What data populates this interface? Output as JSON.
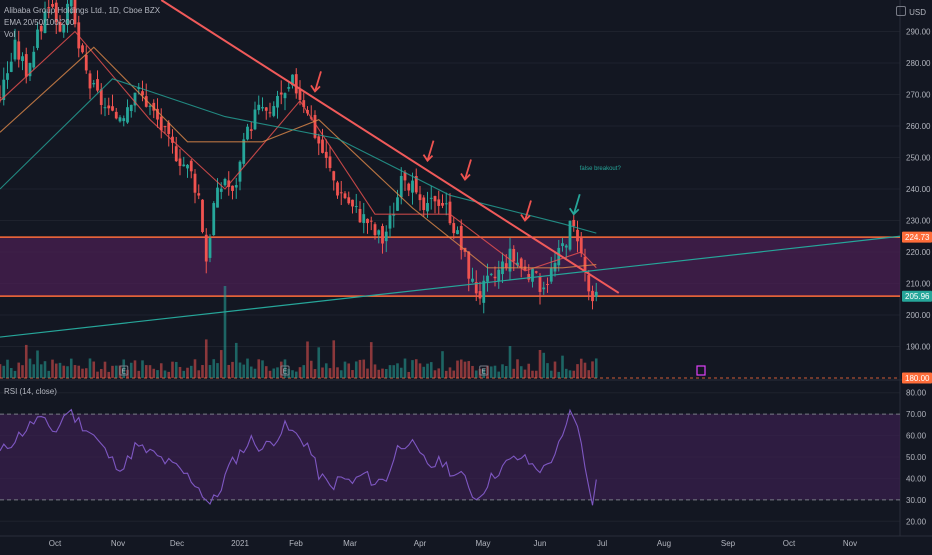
{
  "legend": {
    "title": "Alibaba Group Holdings Ltd., 1D, Cboe BZX",
    "ema": "EMA 20/50/100/200",
    "vol": "Vol"
  },
  "currency": "USD",
  "rsi_title": "RSI (14, close)",
  "annotation": "false breakout?",
  "colors": {
    "background": "#131722",
    "up": "#26a69a",
    "down": "#ef5350",
    "zone": "#4a1f52",
    "zone_line": "#ff6d3a",
    "trend_up": "#26a69a",
    "trend_down": "#f05a5a",
    "rsi": "#7e57c2",
    "rsi_band": "#3a1f4f",
    "ema20": "#ef5350",
    "ema50": "#e0894a",
    "ema100": "#26a69a",
    "label_orange": "#ff6d3a",
    "label_green": "#26a69a"
  },
  "chart_data": [
    {
      "type": "candlestick",
      "title": "Alibaba Group Holdings Ltd., 1D, Cboe BZX",
      "x_ticks": [
        "Oct",
        "Nov",
        "Dec",
        "2021",
        "Feb",
        "Mar",
        "Apr",
        "May",
        "Jun",
        "Jul",
        "Aug",
        "Sep",
        "Oct",
        "Nov"
      ],
      "y_ticks": [
        190,
        200,
        210,
        220,
        230,
        240,
        250,
        260,
        270,
        280,
        290
      ],
      "ylim": [
        180,
        300
      ],
      "price_labels": [
        {
          "value": "224.73",
          "price": 224.73,
          "color": "orange"
        },
        {
          "value": "205.96",
          "price": 205.96,
          "color": "green"
        },
        {
          "value": "180.00",
          "price": 180.0,
          "color": "orange"
        }
      ],
      "support_zone": [
        206,
        224.73
      ],
      "close_series": [
        [
          0,
          270
        ],
        [
          4,
          285
        ],
        [
          7,
          278
        ],
        [
          10,
          288
        ],
        [
          13,
          300
        ],
        [
          16,
          292
        ],
        [
          19,
          298
        ],
        [
          21,
          285
        ],
        [
          24,
          273
        ],
        [
          27,
          268
        ],
        [
          30,
          262
        ],
        [
          33,
          265
        ],
        [
          36,
          272
        ],
        [
          39,
          268
        ],
        [
          42,
          262
        ],
        [
          45,
          255
        ],
        [
          48,
          250
        ],
        [
          51,
          245
        ],
        [
          53,
          238
        ],
        [
          55,
          218
        ],
        [
          57,
          235
        ],
        [
          60,
          244
        ],
        [
          62,
          238
        ],
        [
          64,
          248
        ],
        [
          66,
          258
        ],
        [
          68,
          264
        ],
        [
          70,
          266
        ],
        [
          72,
          262
        ],
        [
          74,
          270
        ],
        [
          76,
          268
        ],
        [
          78,
          274
        ],
        [
          80,
          270
        ],
        [
          82,
          266
        ],
        [
          84,
          258
        ],
        [
          86,
          252
        ],
        [
          88,
          246
        ],
        [
          90,
          240
        ],
        [
          92,
          238
        ],
        [
          94,
          234
        ],
        [
          96,
          232
        ],
        [
          98,
          230
        ],
        [
          100,
          226
        ],
        [
          102,
          224
        ],
        [
          104,
          230
        ],
        [
          106,
          238
        ],
        [
          108,
          245
        ],
        [
          110,
          240
        ],
        [
          112,
          234
        ],
        [
          114,
          233
        ],
        [
          116,
          238
        ],
        [
          118,
          236
        ],
        [
          120,
          232
        ],
        [
          122,
          225
        ],
        [
          124,
          218
        ],
        [
          126,
          210
        ],
        [
          128,
          207
        ],
        [
          130,
          210
        ],
        [
          132,
          212
        ],
        [
          134,
          216
        ],
        [
          136,
          219
        ],
        [
          138,
          217
        ],
        [
          140,
          214
        ],
        [
          142,
          212
        ],
        [
          144,
          210
        ],
        [
          146,
          212
        ],
        [
          148,
          216
        ],
        [
          150,
          222
        ],
        [
          152,
          228
        ],
        [
          154,
          226
        ],
        [
          155,
          219
        ],
        [
          156,
          214
        ],
        [
          157,
          208
        ],
        [
          158,
          202
        ],
        [
          159,
          206
        ]
      ],
      "ema_series": [
        {
          "name": "EMA 20",
          "values": [
            [
              0,
              268
            ],
            [
              20,
              290
            ],
            [
              40,
              262
            ],
            [
              60,
              240
            ],
            [
              80,
              268
            ],
            [
              100,
              232
            ],
            [
              120,
              232
            ],
            [
              140,
              214
            ],
            [
              155,
              220
            ],
            [
              159,
              215
            ]
          ]
        },
        {
          "name": "EMA 50",
          "values": [
            [
              0,
              258
            ],
            [
              25,
              285
            ],
            [
              50,
              255
            ],
            [
              70,
              255
            ],
            [
              85,
              262
            ],
            [
              110,
              234
            ],
            [
              130,
              215
            ],
            [
              150,
              215
            ],
            [
              159,
              216
            ]
          ]
        },
        {
          "name": "EMA 100",
          "values": [
            [
              0,
              240
            ],
            [
              30,
              275
            ],
            [
              60,
              263
            ],
            [
              90,
              256
            ],
            [
              120,
              238
            ],
            [
              150,
              229
            ],
            [
              159,
              226
            ]
          ]
        }
      ],
      "trendlines": [
        {
          "name": "descending",
          "from": [
            43,
            300
          ],
          "to": [
            165,
            207
          ]
        },
        {
          "name": "ascending",
          "from": [
            0,
            193
          ],
          "to": [
            240,
            225
          ]
        }
      ],
      "arrows": [
        {
          "bar": 84,
          "price": 271,
          "color": "down"
        },
        {
          "bar": 114,
          "price": 249,
          "color": "down"
        },
        {
          "bar": 124,
          "price": 243,
          "color": "down"
        },
        {
          "bar": 140,
          "price": 230,
          "color": "down"
        },
        {
          "bar": 153,
          "price": 232,
          "color": "up"
        }
      ],
      "earnings_bars": [
        33,
        76,
        129
      ]
    },
    {
      "type": "line",
      "title": "RSI (14, close)",
      "y_ticks": [
        20,
        30,
        40,
        50,
        60,
        70,
        80
      ],
      "ylim": [
        15,
        85
      ],
      "band": [
        30,
        70
      ],
      "values": [
        [
          0,
          52
        ],
        [
          5,
          60
        ],
        [
          10,
          68
        ],
        [
          15,
          62
        ],
        [
          18,
          72
        ],
        [
          22,
          65
        ],
        [
          25,
          60
        ],
        [
          30,
          48
        ],
        [
          33,
          45
        ],
        [
          36,
          55
        ],
        [
          40,
          52
        ],
        [
          44,
          48
        ],
        [
          48,
          44
        ],
        [
          52,
          38
        ],
        [
          56,
          28
        ],
        [
          58,
          32
        ],
        [
          61,
          45
        ],
        [
          64,
          52
        ],
        [
          67,
          58
        ],
        [
          70,
          54
        ],
        [
          73,
          58
        ],
        [
          76,
          64
        ],
        [
          79,
          60
        ],
        [
          82,
          56
        ],
        [
          85,
          42
        ],
        [
          88,
          36
        ],
        [
          91,
          40
        ],
        [
          94,
          38
        ],
        [
          97,
          42
        ],
        [
          100,
          38
        ],
        [
          103,
          40
        ],
        [
          106,
          54
        ],
        [
          109,
          58
        ],
        [
          112,
          50
        ],
        [
          115,
          46
        ],
        [
          118,
          48
        ],
        [
          121,
          42
        ],
        [
          124,
          40
        ],
        [
          127,
          30
        ],
        [
          130,
          38
        ],
        [
          133,
          44
        ],
        [
          136,
          48
        ],
        [
          139,
          50
        ],
        [
          142,
          46
        ],
        [
          145,
          44
        ],
        [
          148,
          52
        ],
        [
          150,
          58
        ],
        [
          152,
          70
        ],
        [
          154,
          66
        ],
        [
          156,
          44
        ],
        [
          158,
          30
        ],
        [
          159,
          38
        ]
      ]
    }
  ]
}
